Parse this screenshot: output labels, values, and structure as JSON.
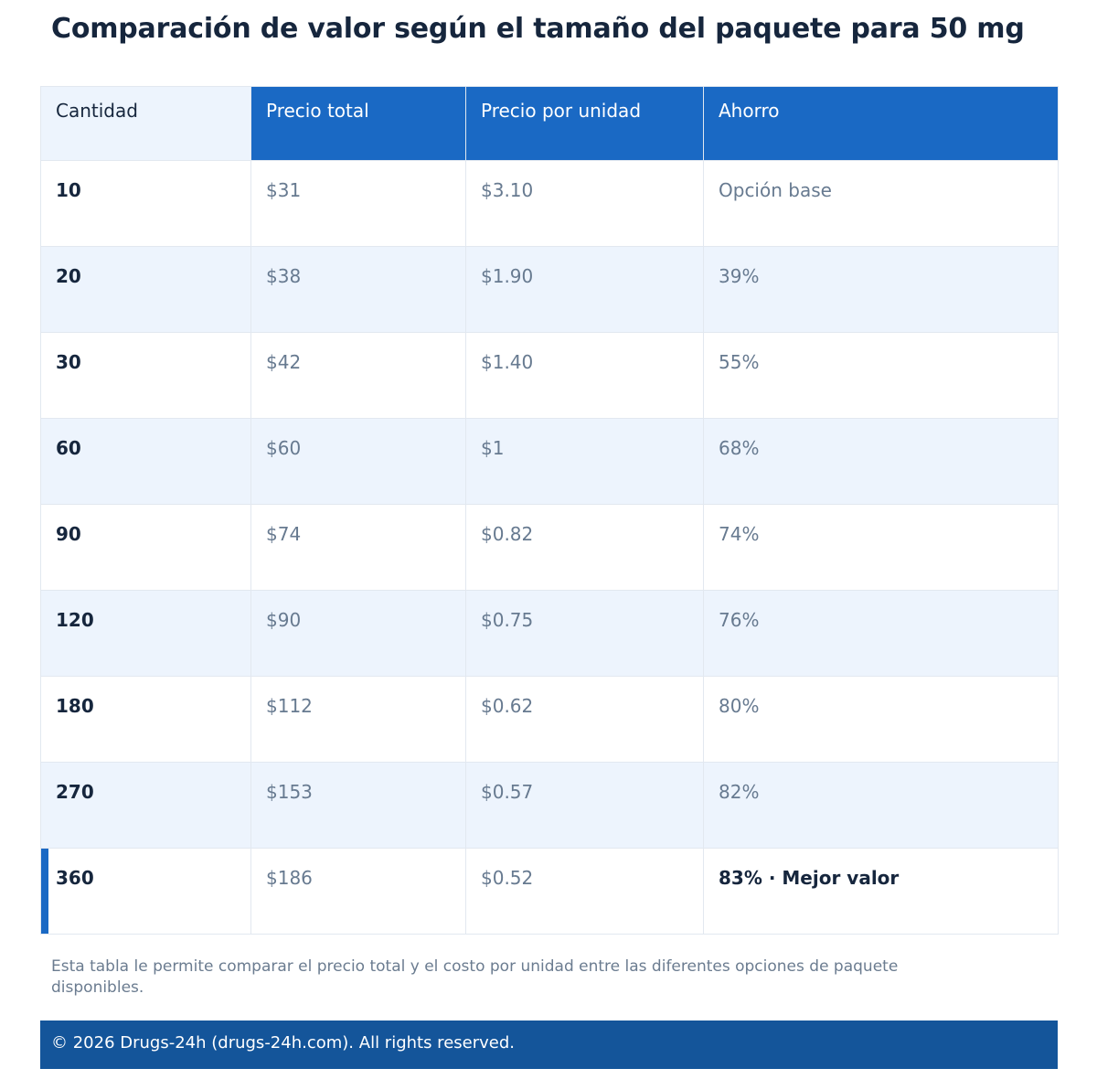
{
  "title": "Comparación de valor según el tamaño del paquete para 50 mg",
  "table": {
    "headers": [
      "Cantidad",
      "Precio total",
      "Precio por unidad",
      "Ahorro"
    ],
    "rows": [
      {
        "qty": "10",
        "total": "$31",
        "unit": "$3.10",
        "saving": "Opción base"
      },
      {
        "qty": "20",
        "total": "$38",
        "unit": "$1.90",
        "saving": "39%"
      },
      {
        "qty": "30",
        "total": "$42",
        "unit": "$1.40",
        "saving": "55%"
      },
      {
        "qty": "60",
        "total": "$60",
        "unit": "$1",
        "saving": "68%"
      },
      {
        "qty": "90",
        "total": "$74",
        "unit": "$0.82",
        "saving": "74%"
      },
      {
        "qty": "120",
        "total": "$90",
        "unit": "$0.75",
        "saving": "76%"
      },
      {
        "qty": "180",
        "total": "$112",
        "unit": "$0.62",
        "saving": "80%"
      },
      {
        "qty": "270",
        "total": "$153",
        "unit": "$0.57",
        "saving": "82%"
      },
      {
        "qty": "360",
        "total": "$186",
        "unit": "$0.52",
        "saving": "83% · Mejor valor"
      }
    ]
  },
  "note": "Esta tabla le permite comparar el precio total y el costo por unidad entre las diferentes opciones de paquete disponibles.",
  "footer": "© 2026 Drugs-24h (drugs-24h.com). All rights reserved.",
  "colors": {
    "accent": "#1a69c4",
    "footer_bg": "#14559a",
    "row_alt": "#edf4fd"
  }
}
